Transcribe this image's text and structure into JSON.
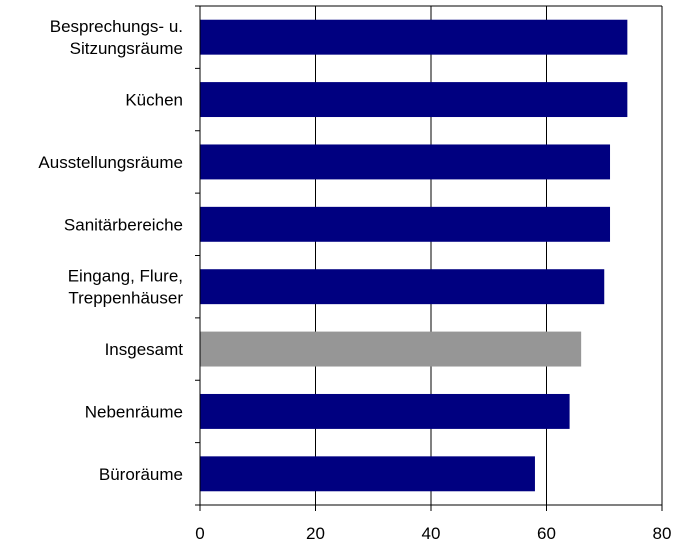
{
  "chart_data": {
    "type": "bar",
    "orientation": "horizontal",
    "categories": [
      "Besprechungs- u. Sitzungsräume",
      "Küchen",
      "Ausstellungsräume",
      "Sanitärbereiche",
      "Eingang, Flure, Treppenhäuser",
      "Insgesamt",
      "Nebenräume",
      "Büroräume"
    ],
    "category_lines": [
      [
        "Besprechungs- u.",
        "Sitzungsräume"
      ],
      [
        "Küchen"
      ],
      [
        "Ausstellungsräume"
      ],
      [
        "Sanitärbereiche"
      ],
      [
        "Eingang, Flure,",
        "Treppenhäuser"
      ],
      [
        "Insgesamt"
      ],
      [
        "Nebenräume"
      ],
      [
        "Büroräume"
      ]
    ],
    "values": [
      74,
      74,
      71,
      71,
      70,
      66,
      64,
      58
    ],
    "highlight_index": 5,
    "bar_color": "#000080",
    "highlight_color": "#969696",
    "xlim": [
      0,
      80
    ],
    "xticks": [
      0,
      20,
      40,
      60,
      80
    ],
    "grid": "vertical",
    "title": "",
    "xlabel": "",
    "ylabel": ""
  }
}
